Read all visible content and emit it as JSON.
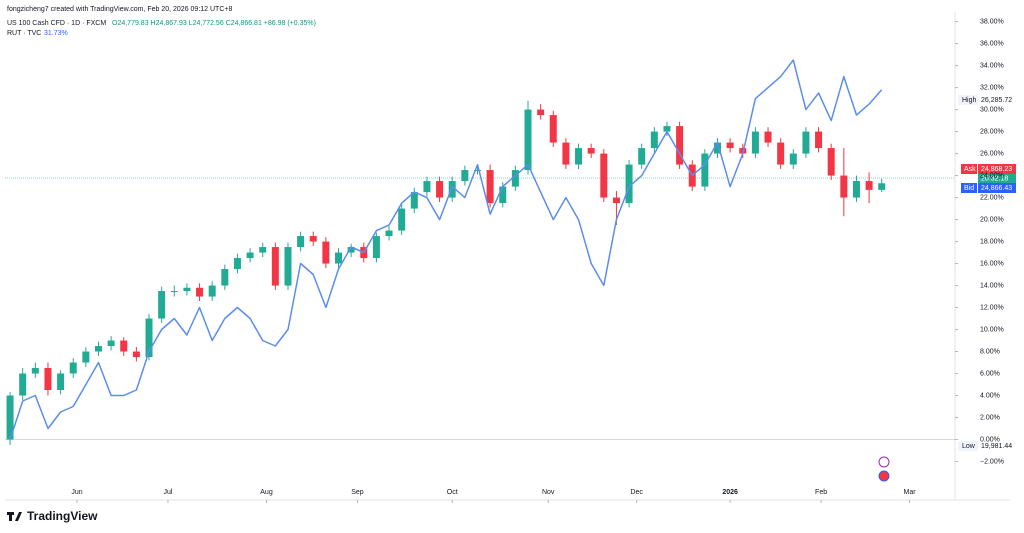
{
  "header": {
    "credit": "fongzicheng7 created with TradingView.com, Feb 20, 2026 09:12 UTC+8",
    "symbol": "US 100 Cash CFD · 1D · FXCM",
    "ohlc": "O24,779.83 H24,867.93 L24,772.56 C24,866.81 +86.98 (+0.35%)",
    "compare_name": "RUT · TVC",
    "compare_change": "31.73%"
  },
  "price_labels": {
    "high_tag": "High",
    "high": "26,285.72",
    "ask_tag": "Ask",
    "ask": "24,868.23",
    "timer": "20:32:18",
    "bid_tag": "Bid",
    "bid": "24,866.43",
    "low_tag": "Low",
    "low": "19,981.44"
  },
  "footer": {
    "brand": "TradingView"
  },
  "chart_data": {
    "type": "candlestick",
    "up_color": "#22ab94",
    "down_color": "#f23645",
    "open": [
      0,
      4,
      6,
      6.5,
      4.5,
      6,
      7,
      8,
      8.5,
      9,
      8,
      7.5,
      11,
      13.5,
      13.5,
      13.8,
      13,
      14,
      15.5,
      16.5,
      17,
      17.5,
      14,
      17.5,
      18.5,
      18,
      16,
      17,
      17.5,
      16.5,
      18.5,
      19,
      21,
      22.5,
      23.5,
      22,
      23.5,
      24.5,
      24.5,
      21.5,
      23,
      24.5,
      30,
      29.5,
      27,
      25,
      26.5,
      26,
      22,
      21.5,
      25,
      26.5,
      28,
      28.5,
      25,
      23,
      26,
      27,
      26.5,
      26,
      28,
      27,
      25,
      26,
      28,
      26.5,
      24,
      22,
      23.5,
      22.7
    ],
    "high": [
      4.3,
      6.5,
      7,
      7,
      6.3,
      7.4,
      8.4,
      8.9,
      9.4,
      9.3,
      8.4,
      11.4,
      13.9,
      14,
      14.2,
      14.2,
      14.4,
      15.9,
      16.9,
      17.4,
      17.9,
      17.9,
      17.9,
      18.9,
      18.9,
      18.4,
      17.4,
      17.8,
      17.9,
      18.8,
      19.4,
      21.4,
      22.9,
      23.9,
      23.9,
      23.9,
      24.9,
      25,
      25,
      23.4,
      24.9,
      30.8,
      30.5,
      29.9,
      27.4,
      26.9,
      26.9,
      26.4,
      22.6,
      25.4,
      26.9,
      28.4,
      28.9,
      28.9,
      25.4,
      26.4,
      27.4,
      27.4,
      26.9,
      28.4,
      28.4,
      27.4,
      26.4,
      28.4,
      28.4,
      26.9,
      26.5,
      24,
      24.3,
      23.7
    ],
    "low": [
      -0.5,
      3.6,
      5.6,
      4,
      4.1,
      5.6,
      6.6,
      7.6,
      8.1,
      7.6,
      7.1,
      7.2,
      10.6,
      13,
      13.1,
      12.6,
      12.6,
      13.6,
      15.1,
      16.1,
      16.6,
      13.6,
      13.6,
      17.1,
      17.6,
      15.6,
      15.6,
      16.6,
      16.1,
      16.1,
      18.1,
      18.6,
      20.6,
      22.1,
      21.6,
      21.6,
      23.1,
      24.1,
      21.1,
      21.1,
      22.6,
      24.1,
      29.1,
      26.6,
      24.6,
      24.6,
      25.6,
      21.6,
      19.5,
      21.1,
      24.6,
      26.1,
      27.6,
      24.6,
      22.6,
      22.6,
      25.6,
      26.1,
      25.6,
      25.6,
      26.6,
      24.6,
      24.6,
      25.6,
      26.1,
      23.6,
      20.3,
      21.6,
      21.5,
      22.5
    ],
    "close": [
      4,
      6,
      6.5,
      4.5,
      6,
      7,
      8,
      8.5,
      9,
      8,
      7.5,
      11,
      13.5,
      13.5,
      13.8,
      13,
      14,
      15.5,
      16.5,
      17,
      17.5,
      14,
      17.5,
      18.5,
      18,
      16,
      17,
      17.5,
      16.5,
      18.5,
      19,
      21,
      22.5,
      23.5,
      22,
      23.5,
      24.5,
      24.5,
      21.5,
      23,
      24.5,
      30,
      29.5,
      27,
      25,
      26.5,
      26,
      22,
      21.5,
      25,
      26.5,
      28,
      28.5,
      25,
      23,
      26,
      27,
      26.5,
      26,
      28,
      27,
      25,
      26,
      28,
      26.5,
      24,
      22,
      23.5,
      22.7,
      23.3
    ],
    "line": {
      "color": "#5b8def",
      "values": [
        0,
        3.5,
        4,
        1,
        2.5,
        3,
        5,
        7,
        4,
        4,
        4.5,
        8,
        10,
        11,
        9.5,
        12,
        9,
        11,
        12,
        11,
        9,
        8.5,
        10,
        16,
        15,
        12,
        15.5,
        17.5,
        17,
        19,
        19.5,
        21.5,
        22.5,
        22,
        20,
        23,
        22,
        25,
        20.5,
        23,
        24,
        25,
        22.5,
        20,
        22,
        20,
        16,
        14,
        20,
        23,
        24,
        26,
        28,
        26,
        24,
        25,
        27,
        23,
        26,
        31,
        32,
        33,
        34.5,
        30,
        31.5,
        29,
        33,
        29.5,
        30.5,
        31.8
      ]
    },
    "xlim": [
      -0.4,
      74.8
    ],
    "xticks": [
      {
        "value": 5.3,
        "label": "Jun"
      },
      {
        "value": 12.5,
        "label": "Jul"
      },
      {
        "value": 20.3,
        "label": "Aug"
      },
      {
        "value": 27.5,
        "label": "Sep"
      },
      {
        "value": 35,
        "label": "Oct"
      },
      {
        "value": 42.6,
        "label": "Nov"
      },
      {
        "value": 49.6,
        "label": "Dec"
      },
      {
        "value": 57,
        "label": "2026"
      },
      {
        "value": 64.2,
        "label": "Feb"
      },
      {
        "value": 71.2,
        "label": "Mar"
      }
    ],
    "ylim": [
      -3.5,
      38.6
    ],
    "yticks": [
      {
        "value": 38,
        "label": "38.00%"
      },
      {
        "value": 36,
        "label": "36.00%"
      },
      {
        "value": 34,
        "label": "34.00%"
      },
      {
        "value": 32,
        "label": "32.00%"
      },
      {
        "value": 30,
        "label": "30.00%"
      },
      {
        "value": 28,
        "label": "28.00%"
      },
      {
        "value": 26,
        "label": "26.00%"
      },
      {
        "value": 24,
        "label": "24.00%"
      },
      {
        "value": 22,
        "label": "22.00%"
      },
      {
        "value": 20,
        "label": "20.00%"
      },
      {
        "value": 18,
        "label": "18.00%"
      },
      {
        "value": 16,
        "label": "16.00%"
      },
      {
        "value": 14,
        "label": "14.00%"
      },
      {
        "value": 12,
        "label": "12.00%"
      },
      {
        "value": 10,
        "label": "10.00%"
      },
      {
        "value": 8,
        "label": "8.00%"
      },
      {
        "value": 6,
        "label": "6.00%"
      },
      {
        "value": 4,
        "label": "4.00%"
      },
      {
        "value": 2,
        "label": "2.00%"
      },
      {
        "value": 0,
        "label": "0.00%"
      },
      {
        "value": -2,
        "label": "−2.00%"
      }
    ]
  }
}
